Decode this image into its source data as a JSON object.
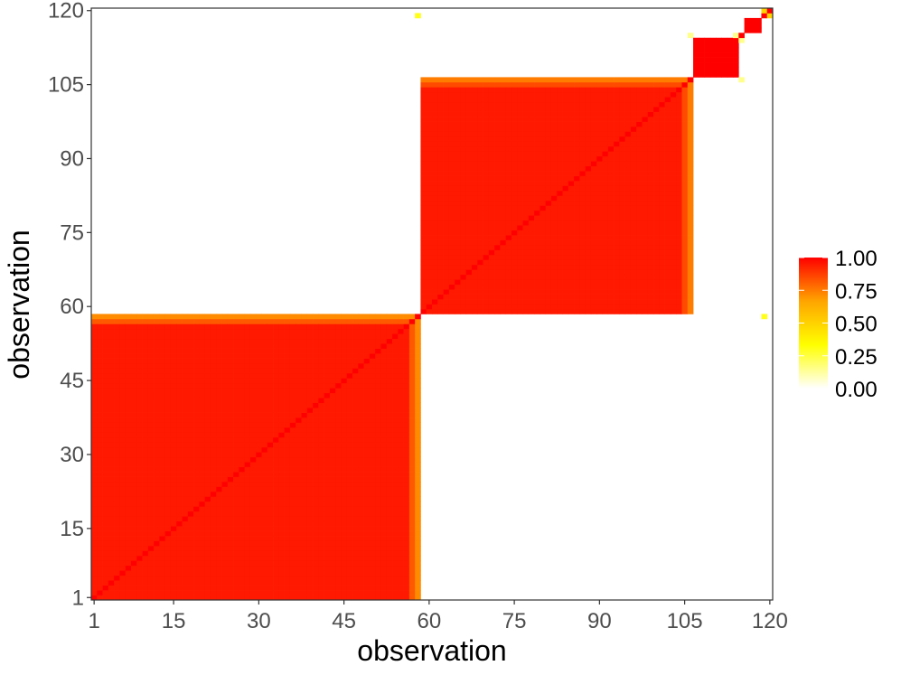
{
  "chart_data": {
    "type": "heatmap",
    "n": 120,
    "xlabel": "observation",
    "ylabel": "observation",
    "x_ticks": [
      1,
      15,
      30,
      45,
      60,
      75,
      90,
      105,
      120
    ],
    "y_ticks": [
      1,
      15,
      30,
      45,
      60,
      75,
      90,
      105,
      120
    ],
    "xlim": [
      1,
      120
    ],
    "ylim": [
      1,
      120
    ],
    "grid": false,
    "legend": {
      "placement": "right",
      "ticks": [
        "1.00",
        "0.75",
        "0.50",
        "0.25",
        "0.00"
      ],
      "range": [
        0,
        1
      ],
      "colors": [
        "#ffffff",
        "#ffff00",
        "#ffa500",
        "#ff0000"
      ]
    },
    "blocks": [
      {
        "from": 1,
        "to": 58,
        "value": 0.95
      },
      {
        "from": 59,
        "to": 106,
        "value": 0.95
      },
      {
        "from": 107,
        "to": 114,
        "value": 1.0
      },
      {
        "from": 115,
        "to": 115,
        "value": 0.2
      },
      {
        "from": 116,
        "to": 118,
        "value": 1.0
      },
      {
        "from": 119,
        "to": 119,
        "value": 0.9
      },
      {
        "from": 120,
        "to": 120,
        "value": 0.9
      }
    ],
    "edge_values": [
      {
        "index": 58,
        "block_from": 1,
        "block_to": 57,
        "value": 0.72
      },
      {
        "index": 57,
        "block_from": 1,
        "block_to": 56,
        "value": 0.82
      },
      {
        "index": 106,
        "block_from": 59,
        "block_to": 105,
        "value": 0.75
      },
      {
        "index": 105,
        "block_from": 59,
        "block_to": 104,
        "value": 0.85
      }
    ],
    "off_block_values": [
      {
        "i": 58,
        "j": 119,
        "value": 0.3
      },
      {
        "i": 106,
        "j": 115,
        "value": 0.15
      },
      {
        "i": 114,
        "j": 115,
        "value": 0.15
      },
      {
        "i": 119,
        "j": 120,
        "value": 0.5
      }
    ]
  }
}
